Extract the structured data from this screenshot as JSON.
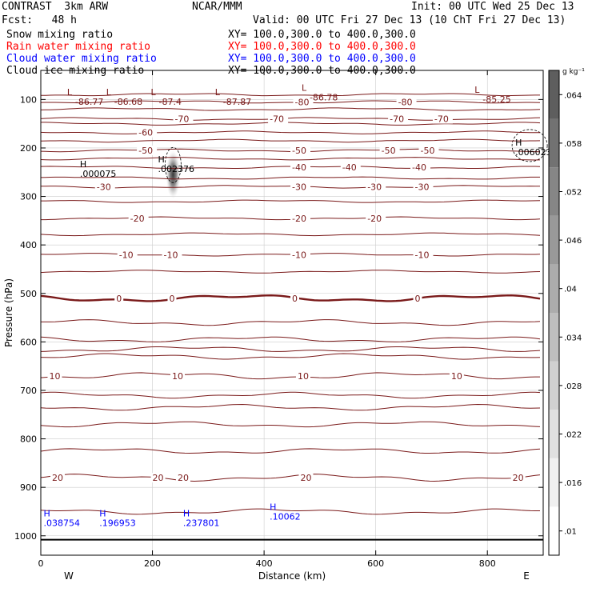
{
  "header": {
    "model": "CONTRAST  3km ARW",
    "institution": "NCAR/MMM",
    "init": "Init: 00 UTC Wed 25 Dec 13",
    "fcst": "Fcst:   48 h",
    "valid": "Valid: 00 UTC Fri 27 Dec 13 (10 ChT Fri 27 Dec 13)"
  },
  "fields": [
    {
      "name": "Snow mixing ratio",
      "xy": "XY= 100.0,300.0 to 400.0,300.0",
      "color": "#000000"
    },
    {
      "name": "Rain water mixing ratio",
      "xy": "XY= 100.0,300.0 to 400.0,300.0",
      "color": "#ff0000"
    },
    {
      "name": "Cloud water mixing ratio",
      "xy": "XY= 100.0,300.0 to 400.0,300.0",
      "color": "#0000ff"
    },
    {
      "name": "Cloud ice mixing ratio",
      "xy": "XY= 100.0,300.0 to 400.0,300.0",
      "color": "#000000"
    }
  ],
  "chart_data": {
    "type": "contour",
    "xlabel": "Distance (km)",
    "ylabel": "Pressure (hPa)",
    "xlim": [
      0,
      900
    ],
    "ylim": [
      1040,
      40
    ],
    "xticks": [
      0,
      200,
      400,
      600,
      800
    ],
    "yticks": [
      100,
      200,
      300,
      400,
      500,
      600,
      700,
      800,
      900,
      1000
    ],
    "left_label": "W",
    "right_label": "E",
    "temperature_contours": [
      {
        "level": -80,
        "p": 105,
        "labels": [
          {
            "x": 455,
            "t": "-80"
          },
          {
            "x": 640,
            "t": "-80"
          }
        ]
      },
      {
        "level": -70,
        "p": 140,
        "labels": [
          {
            "x": 240,
            "t": "-70"
          },
          {
            "x": 410,
            "t": "-70"
          },
          {
            "x": 625,
            "t": "-70"
          },
          {
            "x": 705,
            "t": "-70"
          }
        ]
      },
      {
        "level": -60,
        "p": 168,
        "labels": [
          {
            "x": 175,
            "t": "-60"
          }
        ]
      },
      {
        "level": -50,
        "p": 205,
        "labels": [
          {
            "x": 175,
            "t": "-50"
          },
          {
            "x": 450,
            "t": "-50"
          },
          {
            "x": 610,
            "t": "-50"
          },
          {
            "x": 680,
            "t": "-50"
          }
        ]
      },
      {
        "level": -40,
        "p": 240,
        "labels": [
          {
            "x": 450,
            "t": "-40"
          },
          {
            "x": 540,
            "t": "-40"
          },
          {
            "x": 665,
            "t": "-40"
          }
        ]
      },
      {
        "level": -30,
        "p": 280,
        "labels": [
          {
            "x": 100,
            "t": "-30"
          },
          {
            "x": 450,
            "t": "-30"
          },
          {
            "x": 585,
            "t": "-30"
          },
          {
            "x": 670,
            "t": "-30"
          }
        ]
      },
      {
        "level": -20,
        "p": 345,
        "labels": [
          {
            "x": 160,
            "t": "-20"
          },
          {
            "x": 450,
            "t": "-20"
          },
          {
            "x": 585,
            "t": "-20"
          }
        ]
      },
      {
        "level": -10,
        "p": 420,
        "labels": [
          {
            "x": 140,
            "t": "-10"
          },
          {
            "x": 220,
            "t": "-10"
          },
          {
            "x": 450,
            "t": "-10"
          },
          {
            "x": 670,
            "t": "-10"
          }
        ]
      },
      {
        "level": 0,
        "p": 510,
        "labels": [
          {
            "x": 135,
            "t": "0"
          },
          {
            "x": 230,
            "t": "0"
          },
          {
            "x": 450,
            "t": "0"
          },
          {
            "x": 670,
            "t": "0"
          }
        ]
      },
      {
        "level": 10,
        "p": 670,
        "labels": [
          {
            "x": 15,
            "t": "10"
          },
          {
            "x": 235,
            "t": "10"
          },
          {
            "x": 460,
            "t": "10"
          },
          {
            "x": 735,
            "t": "10"
          }
        ]
      },
      {
        "level": 20,
        "p": 880,
        "labels": [
          {
            "x": 20,
            "t": "20"
          },
          {
            "x": 200,
            "t": "20"
          },
          {
            "x": 245,
            "t": "20"
          },
          {
            "x": 465,
            "t": "20"
          },
          {
            "x": 845,
            "t": "20"
          }
        ]
      }
    ],
    "extra_contour_levels_hpa": [
      90,
      120,
      150,
      185,
      222,
      262,
      310,
      378,
      455,
      560,
      595,
      615,
      630,
      710,
      735,
      770,
      825,
      950
    ],
    "minimum_labels": [
      {
        "x": 50,
        "p": 88,
        "t": "-86.77"
      },
      {
        "x": 120,
        "p": 88,
        "t": "-86.68"
      },
      {
        "x": 200,
        "p": 88,
        "t": "-87.4"
      },
      {
        "x": 315,
        "p": 88,
        "t": "-87.87"
      },
      {
        "x": 470,
        "p": 79,
        "t": "-86.78"
      },
      {
        "x": 780,
        "p": 83,
        "t": "-85.25"
      }
    ],
    "maxima": [
      {
        "x": 70,
        "p": 240,
        "value": ".000075",
        "color": "#000000"
      },
      {
        "x": 210,
        "p": 230,
        "value": ".002376",
        "color": "#000000"
      },
      {
        "x": 850,
        "p": 195,
        "value": ".006023",
        "color": "#000000"
      },
      {
        "x": 5,
        "p": 960,
        "value": ".038754",
        "color": "#0000ff"
      },
      {
        "x": 105,
        "p": 960,
        "value": ".196953",
        "color": "#0000ff"
      },
      {
        "x": 255,
        "p": 960,
        "value": ".237801",
        "color": "#0000ff"
      },
      {
        "x": 410,
        "p": 947,
        "value": ".10062",
        "color": "#0000ff"
      }
    ],
    "snow_shading": {
      "x": 237,
      "p": 255,
      "max": 0.066
    },
    "colorbar": {
      "unit": "g kg⁻¹",
      "ticks": [
        ".01",
        ".016",
        ".022",
        ".028",
        ".034",
        ".04",
        ".046",
        ".052",
        ".058",
        ".064"
      ],
      "levels": [
        0.007,
        0.013,
        0.019,
        0.025,
        0.031,
        0.037,
        0.043,
        0.049,
        0.055,
        0.061,
        0.067
      ],
      "colors": [
        "#ffffff",
        "#f0f0f0",
        "#e0e0e0",
        "#d0d0d0",
        "#bebebe",
        "#acacac",
        "#999999",
        "#868686",
        "#727272",
        "#5e5e5e",
        "#4a4a4a"
      ]
    },
    "contour_color": "#7a1a1a",
    "grid": true,
    "grid_color": "#cccccc"
  }
}
